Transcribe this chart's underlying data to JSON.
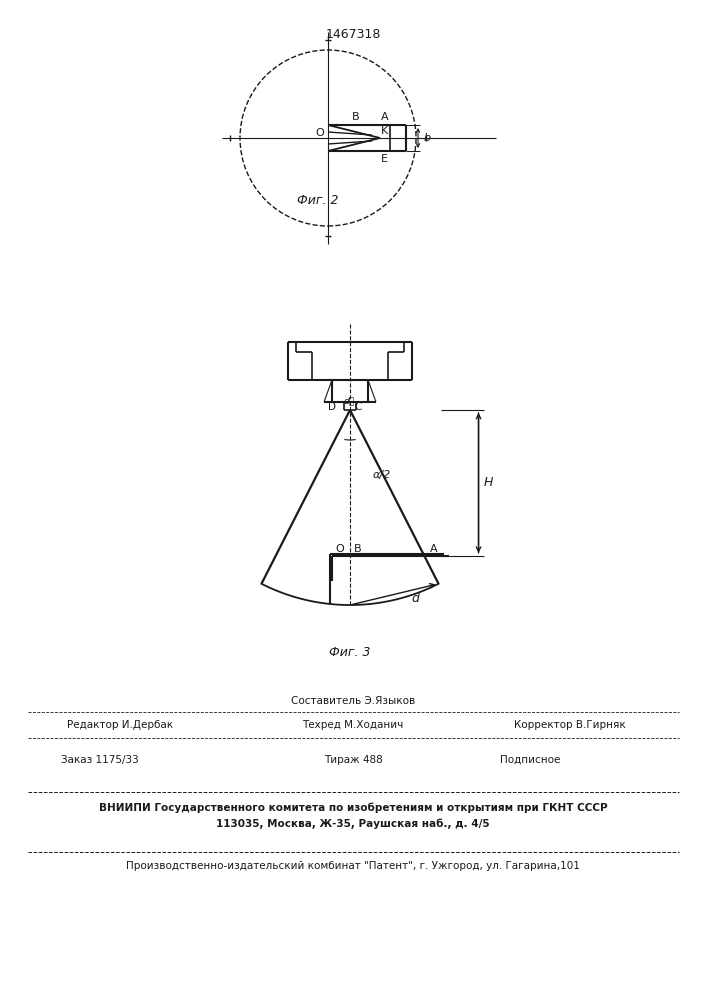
{
  "patent_number": "1467318",
  "fig2_caption": "Фиг. 2",
  "fig3_caption": "Фиг. 3",
  "footer_sestavitel": "Составитель Э.Языков",
  "footer_editor": "Редактор И.Дербак",
  "footer_tehred": "Техред М.Ходанич",
  "footer_korrektor": "Корректор В.Гирняк",
  "footer_zakaz": "Заказ 1175/33",
  "footer_tirazh": "Тираж 488",
  "footer_podpisnoe": "Подписное",
  "footer_vniipи": "ВНИИПИ Государственного комитета по изобретениям и открытиям при ГКНТ СССР",
  "footer_addr": "113035, Москва, Ж-35, Раушская наб., д. 4/5",
  "footer_patent": "Производственно-издательский комбинат \"Патент\", г. Ужгород, ул. Гагарина,101",
  "bg_color": "#ffffff",
  "line_color": "#1a1a1a"
}
